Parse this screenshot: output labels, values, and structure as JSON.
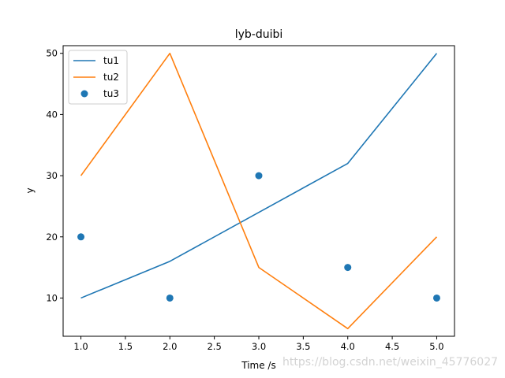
{
  "chart_data": {
    "type": "line",
    "title": "lyb-duibi",
    "xlabel": "Time /s",
    "ylabel": "y",
    "xlim": [
      0.8,
      5.2
    ],
    "ylim": [
      3.75,
      51.25
    ],
    "xticks": [
      1.0,
      1.5,
      2.0,
      2.5,
      3.0,
      3.5,
      4.0,
      4.5,
      5.0
    ],
    "xtick_labels": [
      "1.0",
      "1.5",
      "2.0",
      "2.5",
      "3.0",
      "3.5",
      "4.0",
      "4.5",
      "5.0"
    ],
    "yticks": [
      10,
      20,
      30,
      40,
      50
    ],
    "ytick_labels": [
      "10",
      "20",
      "30",
      "40",
      "50"
    ],
    "grid": false,
    "legend_position": "top-left",
    "series": [
      {
        "name": "tu1",
        "kind": "line",
        "color": "#1f77b4",
        "x": [
          1,
          2,
          3,
          4,
          5
        ],
        "y": [
          10,
          16,
          24,
          32,
          50
        ]
      },
      {
        "name": "tu2",
        "kind": "line",
        "color": "#ff7f0e",
        "x": [
          1,
          2,
          3,
          4,
          5
        ],
        "y": [
          30,
          50,
          15,
          5,
          20
        ]
      },
      {
        "name": "tu3",
        "kind": "scatter",
        "color": "#1f77b4",
        "x": [
          1,
          2,
          3,
          4,
          5
        ],
        "y": [
          20,
          10,
          30,
          15,
          10
        ]
      }
    ]
  },
  "watermark": "https://blog.csdn.net/weixin_45776027"
}
